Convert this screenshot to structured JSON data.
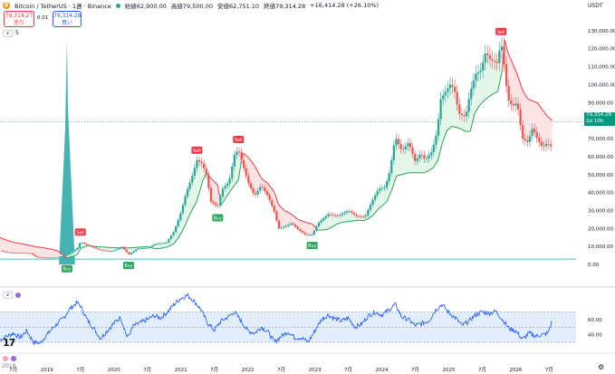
{
  "header": {
    "symbol_icon": "₿",
    "symbol_text": "Bitcoin / TetherUS · 1週 · Binance",
    "open": "始値62,900.00",
    "high": "高値79,500.00",
    "low": "安値62,751.10",
    "close": "終値79,314.28",
    "change": "+16,414.28 (+26.10%)",
    "currency": "USDT"
  },
  "trade": {
    "sell_price": "79,314.27",
    "sell_label": "売り",
    "spread": "0.01",
    "buy_price": "79,314.28",
    "buy_label": "買い"
  },
  "indicator_rows": {
    "main_value": "5",
    "chevron": "∨"
  },
  "last_price": {
    "value": "79,314.28",
    "countdown": "2d 10h"
  },
  "settings_icon": "gear-icon",
  "settings_glyph": "⚙",
  "logo_text": "17",
  "bottom_left": "2018",
  "colors": {
    "buy": "#26a65b",
    "sell": "#f23645",
    "up_candle": "#26a69a",
    "down_candle": "#ef5350",
    "band_green": "#e1f5e4",
    "band_red": "#fde1e1",
    "rsi_line": "#2962ff",
    "rsi_band": "#e3eefc",
    "teal_spike": "#26a6a6",
    "last_price": "#089981"
  },
  "chart_data": [
    {
      "type": "line",
      "subtype": "candlestick-with-trailing-stop",
      "title": "Bitcoin / TetherUS · 1週 · Binance",
      "ylabel": "USDT",
      "y_ticks": [
        "130,000.00",
        "120,000.00",
        "110,000.00",
        "100,000.00",
        "90,000.00",
        "80,000.00",
        "70,000.00",
        "60,000.00",
        "50,000.00",
        "40,000.00",
        "30,000.00",
        "20,000.00",
        "10,000.00",
        "0.00"
      ],
      "y_tick_values": [
        130000,
        120000,
        110000,
        100000,
        90000,
        80000,
        70000,
        60000,
        50000,
        40000,
        30000,
        20000,
        10000,
        0
      ],
      "ylim": [
        -6000,
        140000
      ],
      "x_ticks": [
        "7月",
        "2019",
        "7月",
        "2020",
        "7月",
        "2021",
        "7月",
        "2022",
        "7月",
        "2023",
        "7月",
        "2024",
        "7月",
        "2025",
        "7月",
        "2026",
        "7月"
      ],
      "x_tick_values": [
        2018.5,
        2019,
        2019.5,
        2020,
        2020.5,
        2021,
        2021.5,
        2022,
        2022.5,
        2023,
        2023.5,
        2024,
        2024.5,
        2025,
        2025.5,
        2026,
        2026.5
      ],
      "xlim": [
        2018.3,
        2026.9
      ],
      "price_path": [
        [
          2018.3,
          7500
        ],
        [
          2018.45,
          6500
        ],
        [
          2018.6,
          6400
        ],
        [
          2018.75,
          6300
        ],
        [
          2018.85,
          4000
        ],
        [
          2019.0,
          3700
        ],
        [
          2019.15,
          3900
        ],
        [
          2019.3,
          5200
        ],
        [
          2019.45,
          9000
        ],
        [
          2019.5,
          12500
        ],
        [
          2019.62,
          10500
        ],
        [
          2019.78,
          8200
        ],
        [
          2019.95,
          7200
        ],
        [
          2020.05,
          8500
        ],
        [
          2020.12,
          9800
        ],
        [
          2020.22,
          5500
        ],
        [
          2020.35,
          8800
        ],
        [
          2020.5,
          9200
        ],
        [
          2020.62,
          11500
        ],
        [
          2020.78,
          12000
        ],
        [
          2020.9,
          18500
        ],
        [
          2021.0,
          29000
        ],
        [
          2021.08,
          40000
        ],
        [
          2021.16,
          48000
        ],
        [
          2021.24,
          58000
        ],
        [
          2021.32,
          56000
        ],
        [
          2021.38,
          50000
        ],
        [
          2021.45,
          35000
        ],
        [
          2021.55,
          32000
        ],
        [
          2021.62,
          42000
        ],
        [
          2021.72,
          46000
        ],
        [
          2021.8,
          61000
        ],
        [
          2021.86,
          64000
        ],
        [
          2021.92,
          56000
        ],
        [
          2022.0,
          46000
        ],
        [
          2022.1,
          38000
        ],
        [
          2022.2,
          44000
        ],
        [
          2022.3,
          38000
        ],
        [
          2022.4,
          29000
        ],
        [
          2022.46,
          20000
        ],
        [
          2022.55,
          21000
        ],
        [
          2022.65,
          23000
        ],
        [
          2022.75,
          19500
        ],
        [
          2022.86,
          16500
        ],
        [
          2022.96,
          16600
        ],
        [
          2023.05,
          23000
        ],
        [
          2023.2,
          28000
        ],
        [
          2023.35,
          27000
        ],
        [
          2023.5,
          30000
        ],
        [
          2023.62,
          27000
        ],
        [
          2023.75,
          26500
        ],
        [
          2023.85,
          35000
        ],
        [
          2023.95,
          42000
        ],
        [
          2024.05,
          43000
        ],
        [
          2024.12,
          52000
        ],
        [
          2024.2,
          71000
        ],
        [
          2024.3,
          63000
        ],
        [
          2024.4,
          68000
        ],
        [
          2024.5,
          57000
        ],
        [
          2024.58,
          62000
        ],
        [
          2024.65,
          58000
        ],
        [
          2024.75,
          63000
        ],
        [
          2024.82,
          73000
        ],
        [
          2024.88,
          92000
        ],
        [
          2024.95,
          96000
        ],
        [
          2025.02,
          100000
        ],
        [
          2025.08,
          98000
        ],
        [
          2025.15,
          84000
        ],
        [
          2025.25,
          82000
        ],
        [
          2025.32,
          96000
        ],
        [
          2025.4,
          106000
        ],
        [
          2025.48,
          108000
        ],
        [
          2025.55,
          118000
        ],
        [
          2025.62,
          114000
        ],
        [
          2025.72,
          112000
        ],
        [
          2025.78,
          124000
        ],
        [
          2025.83,
          110000
        ],
        [
          2025.88,
          92000
        ],
        [
          2025.95,
          88000
        ],
        [
          2026.02,
          90000
        ],
        [
          2026.1,
          70000
        ],
        [
          2026.18,
          68000
        ],
        [
          2026.25,
          76000
        ],
        [
          2026.32,
          70000
        ],
        [
          2026.4,
          65000
        ],
        [
          2026.48,
          68000
        ],
        [
          2026.52,
          63000
        ],
        [
          2026.55,
          79300
        ]
      ],
      "trailing_stop": [
        [
          2018.3,
          15000
        ],
        [
          2018.4,
          13500
        ],
        [
          2018.55,
          12000
        ],
        [
          2018.7,
          11000
        ],
        [
          2018.82,
          10000
        ],
        [
          2019.0,
          9000
        ],
        [
          2019.15,
          7800
        ],
        [
          2019.3,
          3700
        ],
        [
          2019.45,
          5200
        ],
        [
          2019.5,
          9000
        ],
        [
          2019.62,
          10500
        ],
        [
          2019.78,
          9800
        ],
        [
          2019.95,
          9400
        ],
        [
          2020.12,
          9200
        ],
        [
          2020.22,
          9200
        ],
        [
          2020.35,
          9500
        ],
        [
          2020.5,
          10000
        ],
        [
          2020.62,
          8700
        ],
        [
          2020.78,
          9500
        ],
        [
          2020.9,
          11500
        ],
        [
          2021.0,
          17000
        ],
        [
          2021.08,
          23000
        ],
        [
          2021.16,
          30000
        ],
        [
          2021.24,
          35000
        ],
        [
          2021.32,
          46000
        ],
        [
          2021.38,
          51000
        ],
        [
          2021.45,
          48000
        ],
        [
          2021.55,
          44000
        ],
        [
          2021.6,
          33000
        ],
        [
          2021.72,
          40000
        ],
        [
          2021.8,
          44000
        ],
        [
          2021.86,
          47000
        ],
        [
          2021.92,
          62000
        ],
        [
          2022.0,
          60000
        ],
        [
          2022.1,
          55000
        ],
        [
          2022.2,
          48000
        ],
        [
          2022.3,
          45000
        ],
        [
          2022.4,
          40000
        ],
        [
          2022.46,
          33000
        ],
        [
          2022.55,
          30000
        ],
        [
          2022.65,
          28000
        ],
        [
          2022.75,
          25000
        ],
        [
          2022.86,
          23500
        ],
        [
          2022.96,
          22500
        ],
        [
          2023.05,
          19000
        ],
        [
          2023.2,
          19500
        ],
        [
          2023.35,
          23000
        ],
        [
          2023.5,
          24000
        ],
        [
          2023.62,
          24500
        ],
        [
          2023.75,
          24500
        ],
        [
          2023.85,
          26500
        ],
        [
          2023.95,
          31000
        ],
        [
          2024.05,
          34000
        ],
        [
          2024.12,
          37000
        ],
        [
          2024.2,
          49000
        ],
        [
          2024.4,
          51000
        ],
        [
          2024.5,
          51000
        ],
        [
          2024.65,
          51000
        ],
        [
          2024.82,
          55000
        ],
        [
          2024.88,
          65000
        ],
        [
          2024.95,
          73000
        ],
        [
          2025.02,
          77000
        ],
        [
          2025.15,
          76000
        ],
        [
          2025.25,
          74000
        ],
        [
          2025.32,
          74000
        ],
        [
          2025.4,
          86000
        ],
        [
          2025.55,
          92000
        ],
        [
          2025.62,
          94000
        ],
        [
          2025.72,
          96000
        ],
        [
          2025.78,
          97000
        ],
        [
          2025.83,
          126000
        ],
        [
          2025.88,
          118000
        ],
        [
          2025.95,
          112000
        ],
        [
          2026.02,
          106000
        ],
        [
          2026.1,
          97000
        ],
        [
          2026.18,
          92000
        ],
        [
          2026.32,
          90000
        ],
        [
          2026.48,
          82000
        ],
        [
          2026.55,
          80000
        ]
      ],
      "band_segments": [
        {
          "side": "sell",
          "from": 2018.3,
          "to": 2019.3
        },
        {
          "side": "buy",
          "from": 2019.3,
          "to": 2021.38
        },
        {
          "side": "sell",
          "from": 2021.38,
          "to": 2021.6
        },
        {
          "side": "buy",
          "from": 2021.6,
          "to": 2021.9
        },
        {
          "side": "sell",
          "from": 2021.9,
          "to": 2023.05
        },
        {
          "side": "buy",
          "from": 2023.05,
          "to": 2025.8
        },
        {
          "side": "sell",
          "from": 2025.8,
          "to": 2026.55
        }
      ],
      "signals": [
        {
          "label": "Buy",
          "x": 2019.3,
          "price": 3700
        },
        {
          "label": "Sell",
          "x": 2019.5,
          "price": 12500
        },
        {
          "label": "Buy",
          "x": 2020.22,
          "price": 5500
        },
        {
          "label": "Sell",
          "x": 2021.24,
          "price": 58000
        },
        {
          "label": "Buy",
          "x": 2021.55,
          "price": 32000
        },
        {
          "label": "Sell",
          "x": 2021.86,
          "price": 64000
        },
        {
          "label": "Buy",
          "x": 2022.96,
          "price": 16600
        },
        {
          "label": "Sell",
          "x": 2025.78,
          "price": 124000
        }
      ],
      "spike": {
        "x_start": 2019.18,
        "x_peak": 2019.3,
        "x_end": 2019.42,
        "peak_value": 125000
      },
      "horizontal_line": 3000,
      "last_price_level": 79314.28
    },
    {
      "type": "line",
      "subtype": "oscillator",
      "y_ticks": [
        "60.00",
        "40.00"
      ],
      "y_tick_values": [
        60,
        40
      ],
      "ylim": [
        18,
        92
      ],
      "band": [
        30,
        70
      ],
      "midline": 50,
      "xlim": [
        2018.3,
        2026.9
      ],
      "series": [
        {
          "values": [
            [
              2018.3,
              33
            ],
            [
              2018.4,
              38
            ],
            [
              2018.5,
              42
            ],
            [
              2018.6,
              36
            ],
            [
              2018.7,
              45
            ],
            [
              2018.8,
              30
            ],
            [
              2018.9,
              29
            ],
            [
              2019.0,
              40
            ],
            [
              2019.1,
              50
            ],
            [
              2019.25,
              62
            ],
            [
              2019.35,
              75
            ],
            [
              2019.45,
              82
            ],
            [
              2019.5,
              78
            ],
            [
              2019.6,
              60
            ],
            [
              2019.7,
              48
            ],
            [
              2019.8,
              35
            ],
            [
              2019.9,
              45
            ],
            [
              2020.0,
              55
            ],
            [
              2020.1,
              63
            ],
            [
              2020.2,
              36
            ],
            [
              2020.3,
              52
            ],
            [
              2020.4,
              56
            ],
            [
              2020.5,
              60
            ],
            [
              2020.6,
              65
            ],
            [
              2020.7,
              62
            ],
            [
              2020.8,
              70
            ],
            [
              2020.9,
              80
            ],
            [
              2021.0,
              88
            ],
            [
              2021.1,
              92
            ],
            [
              2021.2,
              84
            ],
            [
              2021.3,
              73
            ],
            [
              2021.4,
              55
            ],
            [
              2021.5,
              46
            ],
            [
              2021.6,
              58
            ],
            [
              2021.7,
              63
            ],
            [
              2021.8,
              70
            ],
            [
              2021.9,
              58
            ],
            [
              2022.0,
              45
            ],
            [
              2022.1,
              42
            ],
            [
              2022.2,
              50
            ],
            [
              2022.3,
              44
            ],
            [
              2022.4,
              30
            ],
            [
              2022.5,
              38
            ],
            [
              2022.6,
              44
            ],
            [
              2022.7,
              36
            ],
            [
              2022.8,
              36
            ],
            [
              2022.9,
              30
            ],
            [
              2023.0,
              45
            ],
            [
              2023.1,
              60
            ],
            [
              2023.2,
              66
            ],
            [
              2023.3,
              61
            ],
            [
              2023.4,
              58
            ],
            [
              2023.5,
              62
            ],
            [
              2023.6,
              50
            ],
            [
              2023.7,
              54
            ],
            [
              2023.8,
              65
            ],
            [
              2023.9,
              70
            ],
            [
              2024.0,
              66
            ],
            [
              2024.1,
              72
            ],
            [
              2024.2,
              80
            ],
            [
              2024.3,
              63
            ],
            [
              2024.4,
              60
            ],
            [
              2024.5,
              52
            ],
            [
              2024.6,
              55
            ],
            [
              2024.7,
              58
            ],
            [
              2024.8,
              72
            ],
            [
              2024.9,
              80
            ],
            [
              2025.0,
              69
            ],
            [
              2025.1,
              62
            ],
            [
              2025.2,
              52
            ],
            [
              2025.3,
              58
            ],
            [
              2025.4,
              66
            ],
            [
              2025.5,
              70
            ],
            [
              2025.6,
              68
            ],
            [
              2025.7,
              71
            ],
            [
              2025.8,
              60
            ],
            [
              2025.9,
              48
            ],
            [
              2026.0,
              45
            ],
            [
              2026.1,
              34
            ],
            [
              2026.2,
              42
            ],
            [
              2026.3,
              38
            ],
            [
              2026.4,
              40
            ],
            [
              2026.48,
              42
            ],
            [
              2026.55,
              60
            ]
          ]
        }
      ]
    }
  ]
}
